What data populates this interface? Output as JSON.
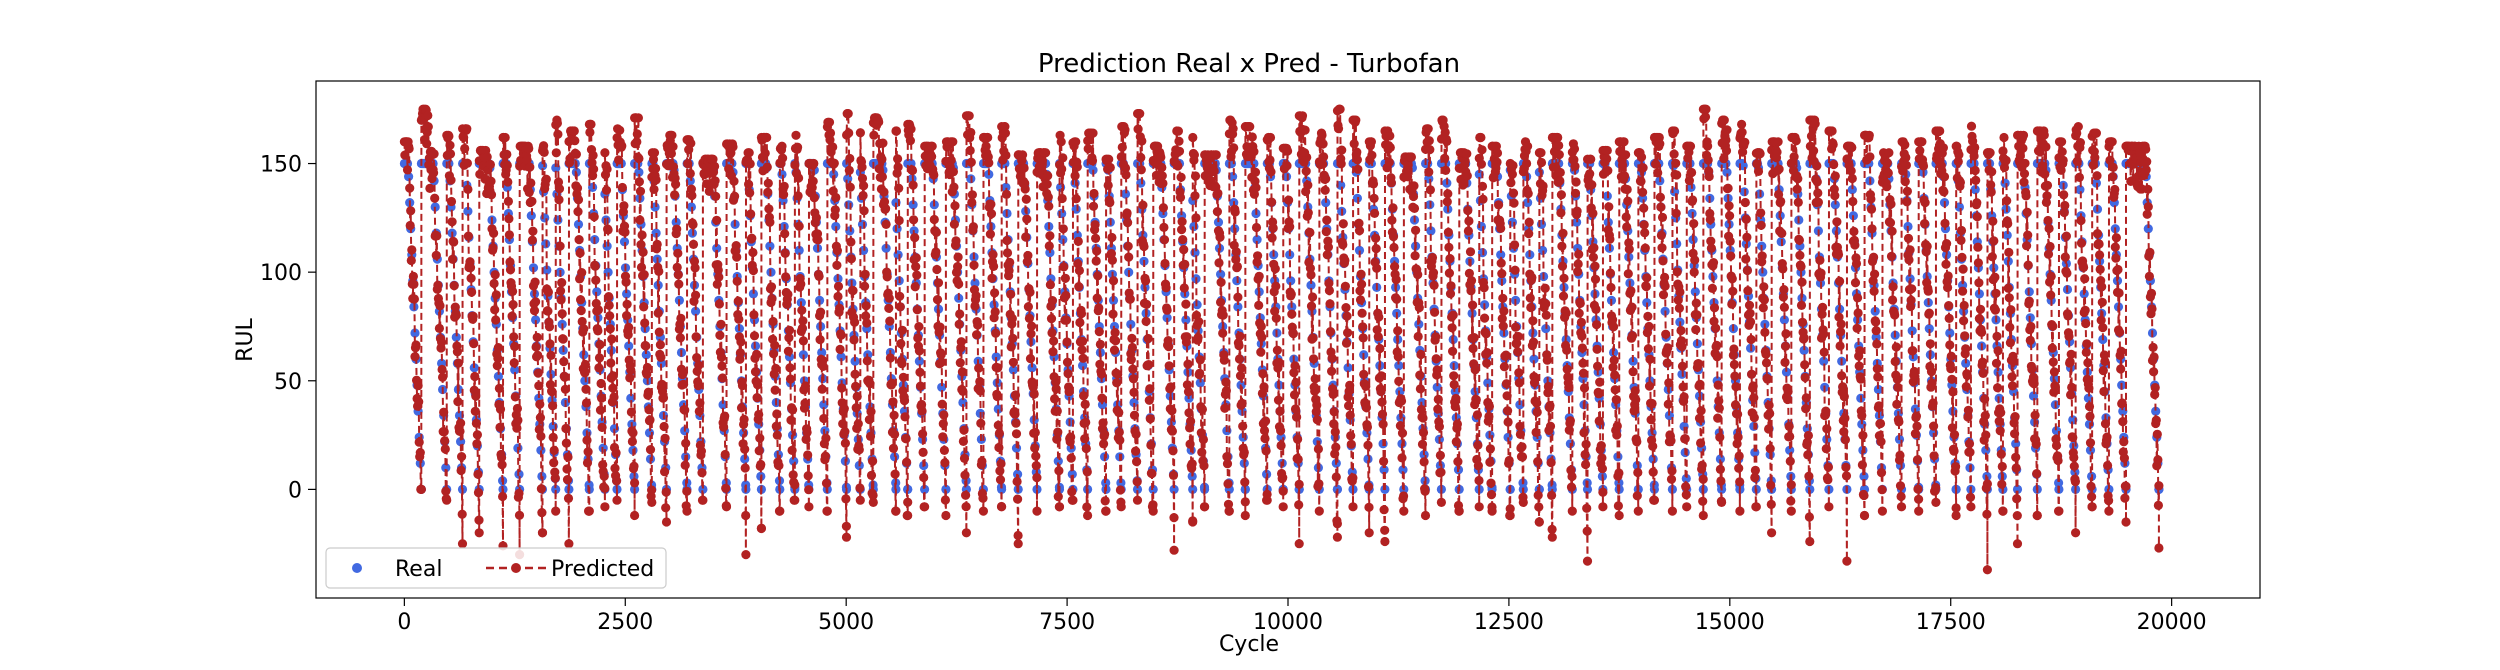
{
  "chart_data": {
    "type": "scatter",
    "title": "Prediction Real x Pred - Turbofan",
    "xlabel": "Cycle",
    "ylabel": "RUL",
    "xlim": [
      -1000,
      21000
    ],
    "ylim": [
      -50,
      188
    ],
    "xticks": [
      0,
      2500,
      5000,
      7500,
      10000,
      12500,
      15000,
      17500,
      20000
    ],
    "yticks": [
      0,
      50,
      100,
      150
    ],
    "grid": false,
    "legend": {
      "placement": "lower-left",
      "entries": [
        {
          "label": "Real",
          "marker": "dot"
        },
        {
          "label": "Predicted",
          "marker": "dashed-line-dot"
        }
      ]
    },
    "series": [
      {
        "name": "Real",
        "color": "#4169e1",
        "style": "scatter",
        "description": "Piecewise-linear RUL target per engine: capped at 150, decreasing linearly to 0 at each engine end",
        "engine_end_cycles": [
          192,
          479,
          658,
          847,
          1116,
          1304,
          1563,
          1713,
          1862,
          2093,
          2269,
          2406,
          2605,
          2800,
          2967,
          3199,
          3378,
          3646,
          3865,
          4040,
          4249,
          4419,
          4578,
          4786,
          5004,
          5160,
          5307,
          5563,
          5696,
          5888,
          6128,
          6361,
          6553,
          6759,
          6947,
          7160,
          7414,
          7566,
          7732,
          7940,
          8112,
          8297,
          8475,
          8711,
          8922,
          9056,
          9336,
          9517,
          9765,
          9946,
          10127,
          10354,
          10559,
          10736,
          10919,
          11097,
          11311,
          11556,
          11736,
          11938,
          12164,
          12310,
          12515,
          12663,
          12844,
          12991,
          13217,
          13389,
          13564,
          13748,
          13964,
          14147,
          14350,
          14512,
          14700,
          14907,
          15114,
          15300,
          15473,
          15696,
          15905,
          16121,
          16325,
          16524,
          16727,
          16943,
          17137,
          17332,
          17561,
          17728,
          17915,
          18090,
          18256,
          18480,
          18724,
          18913,
          19100,
          19290,
          19483,
          19856
        ],
        "max_value": 150,
        "min_value": 0
      },
      {
        "name": "Predicted",
        "color": "#b22222",
        "style": "dashed-line-with-dots",
        "description": "Model predictions per engine, noisy and roughly following the Real curve",
        "peak_values": [
          160,
          175,
          163,
          166,
          156,
          162,
          158,
          163,
          170,
          165,
          168,
          155,
          166,
          171,
          155,
          163,
          161,
          152,
          159,
          155,
          162,
          158,
          163,
          150,
          169,
          173,
          167,
          171,
          165,
          168,
          158,
          160,
          172,
          162,
          167,
          154,
          155,
          163,
          160,
          164,
          152,
          167,
          173,
          158,
          165,
          162,
          154,
          170,
          167,
          162,
          157,
          172,
          164,
          175,
          170,
          160,
          165,
          153,
          166,
          170,
          155,
          162,
          158,
          150,
          160,
          155,
          162,
          160,
          152,
          156,
          160,
          155,
          162,
          165,
          158,
          175,
          170,
          168,
          155,
          160,
          162,
          170,
          165,
          158,
          163,
          155,
          160,
          160,
          165,
          158,
          170,
          155,
          162,
          163,
          165,
          160,
          167,
          164,
          160,
          158
        ],
        "min_values": [
          0,
          -5,
          -25,
          -20,
          -26,
          -30,
          -20,
          -10,
          -25,
          -10,
          -8,
          -5,
          -12,
          -6,
          -15,
          -10,
          -5,
          -8,
          -30,
          -18,
          -10,
          -5,
          -8,
          -10,
          -22,
          -5,
          -6,
          -10,
          -12,
          -8,
          -12,
          -20,
          -10,
          -8,
          -25,
          -10,
          -8,
          -5,
          -12,
          -10,
          -8,
          -5,
          -10,
          -28,
          -15,
          -8,
          -10,
          -12,
          -5,
          -8,
          -25,
          -10,
          -22,
          -8,
          -20,
          -24,
          -10,
          -12,
          -6,
          -10,
          -8,
          -10,
          -12,
          -6,
          -15,
          -22,
          -10,
          -33,
          -8,
          -12,
          -10,
          -5,
          -10,
          -8,
          -12,
          -6,
          -10,
          -8,
          -20,
          -10,
          -24,
          -8,
          -33,
          -12,
          -10,
          -8,
          -10,
          -6,
          -12,
          -8,
          -37,
          -10,
          -25,
          -12,
          -10,
          -20,
          -8,
          -10,
          -15,
          -27
        ]
      }
    ]
  }
}
